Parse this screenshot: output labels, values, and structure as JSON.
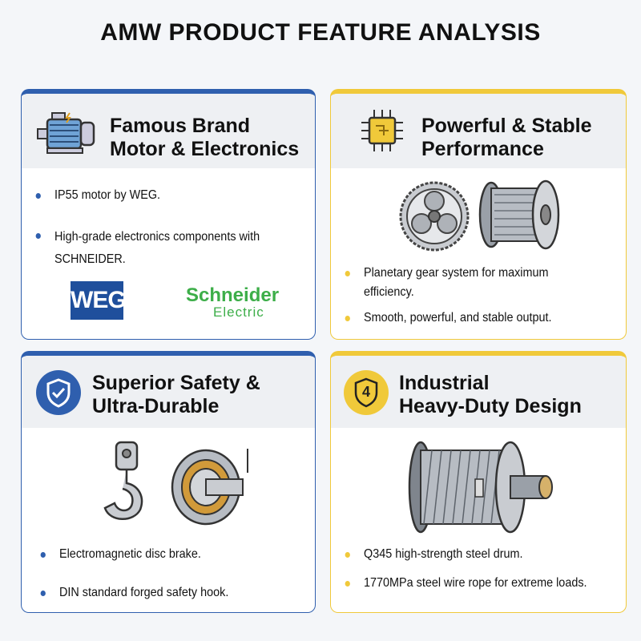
{
  "title": "AMW PRODUCT FEATURE ANALYSIS",
  "colors": {
    "blue": "#2f5fae",
    "yellow": "#f0c93a",
    "weg_blue": "#1f4f9c",
    "schneider_green": "#3dae49"
  },
  "cards": [
    {
      "title_line1": "Famous Brand",
      "title_line2": "Motor & Electronics",
      "icon": "electric-motor-icon",
      "bullets": [
        "IP55 motor by WEG.",
        "High-grade electronics components with SCHNEIDER."
      ],
      "logos": {
        "weg": "WEG",
        "schneider_top": "Schneider",
        "schneider_bottom": "Electric"
      }
    },
    {
      "title_line1": "Powerful & Stable",
      "title_line2": "Performance",
      "icon": "circuit-chip-icon",
      "bullets": [
        "Planetary gear system for maximum efficiency.",
        "Smooth, powerful, and stable output."
      ]
    },
    {
      "title_line1": "Superior Safety &",
      "title_line2": "Ultra-Durable",
      "icon": "shield-check-icon",
      "bullets": [
        "Electromagnetic disc brake.",
        "DIN standard forged safety hook."
      ]
    },
    {
      "title_line1": "Industrial",
      "title_line2": "Heavy-Duty Design",
      "icon": "shield-number-icon",
      "icon_text": "4",
      "bullets": [
        "Q345 high-strength steel drum.",
        "1770MPa steel wire rope for extreme loads."
      ]
    }
  ]
}
